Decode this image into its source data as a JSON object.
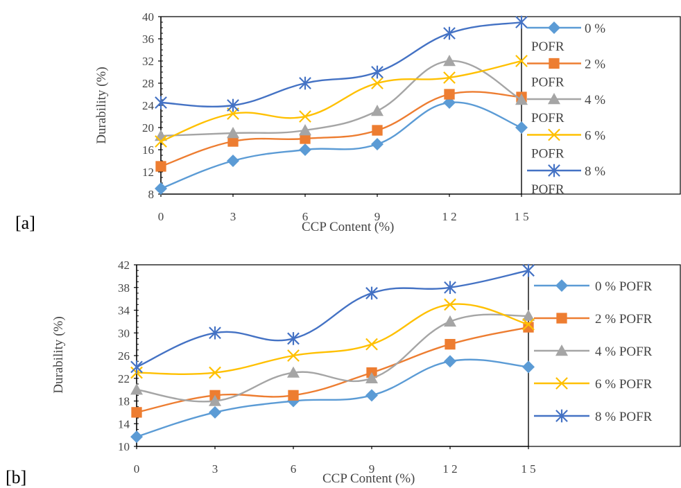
{
  "chart_data": [
    {
      "type": "line",
      "panel_label": "[a]",
      "xlabel": "CCP Content (%)",
      "ylabel": "Durability  (%)",
      "x": [
        0,
        3,
        6,
        9,
        12,
        15
      ],
      "x_tick_labels": [
        "0",
        "3",
        "6",
        "9",
        "1 2",
        "1 5"
      ],
      "ylim": [
        8,
        40
      ],
      "y_ticks": [
        8,
        12,
        16,
        20,
        24,
        28,
        32,
        36,
        40
      ],
      "legend_placement": "right",
      "legend_wrapped": true,
      "series": [
        {
          "name": "0 % POFR",
          "legend_lines": [
            "0 %",
            "POFR"
          ],
          "color": "#5b9bd5",
          "marker": "diamond",
          "values": [
            9,
            14,
            16,
            17,
            24.5,
            20
          ]
        },
        {
          "name": "2 % POFR",
          "legend_lines": [
            "2 %",
            "POFR"
          ],
          "color": "#ed7d31",
          "marker": "square",
          "values": [
            13,
            17.5,
            18,
            19.5,
            26,
            25.5
          ]
        },
        {
          "name": "4 % POFR",
          "legend_lines": [
            "4 %",
            "POFR"
          ],
          "color": "#a5a5a5",
          "marker": "triangle",
          "values": [
            18.5,
            19,
            19.5,
            23,
            32,
            25
          ]
        },
        {
          "name": "6 % POFR",
          "legend_lines": [
            "6 %",
            "POFR"
          ],
          "color": "#ffc000",
          "marker": "x",
          "values": [
            17.5,
            22.5,
            22,
            28,
            29,
            32
          ]
        },
        {
          "name": "8 % POFR",
          "legend_lines": [
            "8 %",
            "POFR"
          ],
          "color": "#4472c4",
          "marker": "star",
          "values": [
            24.5,
            24,
            28,
            30,
            37,
            39
          ]
        }
      ]
    },
    {
      "type": "line",
      "panel_label": "[b]",
      "xlabel": "CCP Content (%)",
      "ylabel": "Durability  (%)",
      "x": [
        0,
        3,
        6,
        9,
        12,
        15
      ],
      "x_tick_labels": [
        "0",
        "3",
        "6",
        "9",
        "1 2",
        "1 5"
      ],
      "ylim": [
        10,
        42
      ],
      "y_ticks": [
        10,
        14,
        18,
        22,
        26,
        30,
        34,
        38,
        42
      ],
      "legend_placement": "right",
      "legend_wrapped": false,
      "series": [
        {
          "name": "0 % POFR",
          "legend_lines": [
            "0 % POFR"
          ],
          "color": "#5b9bd5",
          "marker": "diamond",
          "values": [
            11.7,
            16,
            18,
            19,
            25,
            24
          ]
        },
        {
          "name": "2 % POFR",
          "legend_lines": [
            "2 % POFR"
          ],
          "color": "#ed7d31",
          "marker": "square",
          "values": [
            16,
            19,
            19,
            23,
            28,
            31
          ]
        },
        {
          "name": "4 % POFR",
          "legend_lines": [
            "4 % POFR"
          ],
          "color": "#a5a5a5",
          "marker": "triangle",
          "values": [
            20,
            18,
            23,
            22,
            32,
            33
          ]
        },
        {
          "name": "6 % POFR",
          "legend_lines": [
            "6 % POFR"
          ],
          "color": "#ffc000",
          "marker": "x",
          "values": [
            23,
            23,
            26,
            28,
            35,
            31.5
          ]
        },
        {
          "name": "8 % POFR",
          "legend_lines": [
            "8 % POFR"
          ],
          "color": "#4472c4",
          "marker": "star",
          "values": [
            24,
            30,
            29,
            37,
            38,
            41
          ]
        }
      ]
    }
  ]
}
